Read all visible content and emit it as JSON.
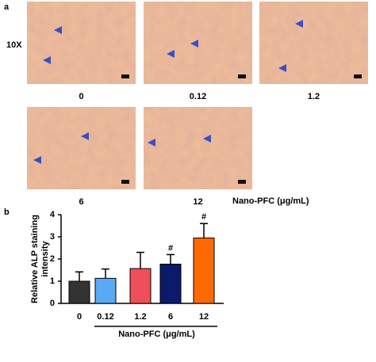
{
  "panel_a": {
    "label": "a",
    "magnification": "10X",
    "images": [
      {
        "label": "0"
      },
      {
        "label": "0.12"
      },
      {
        "label": "1.2"
      },
      {
        "label": "6"
      },
      {
        "label": "12"
      }
    ],
    "axis_label": "Nano-PFC (μg/mL)"
  },
  "chart_data": {
    "type": "bar",
    "panel_label": "b",
    "ylabel": [
      "Relative ALP staining",
      "intensity"
    ],
    "xlabel": "Nano-PFC (μg/mL)",
    "categories": [
      "0",
      "0.12",
      "1.2",
      "6",
      "12"
    ],
    "values": [
      1.0,
      1.13,
      1.57,
      1.77,
      2.95
    ],
    "errors": [
      0.42,
      0.42,
      0.73,
      0.43,
      0.65
    ],
    "value_annotations": [
      null,
      null,
      null,
      "#",
      "#"
    ],
    "colors": [
      "#333333",
      "#5aa9f5",
      "#f04e5a",
      "#0b1a6b",
      "#ff6a00"
    ],
    "ylim": [
      0,
      4
    ],
    "yticks": [
      0,
      1,
      2,
      3,
      4
    ]
  }
}
